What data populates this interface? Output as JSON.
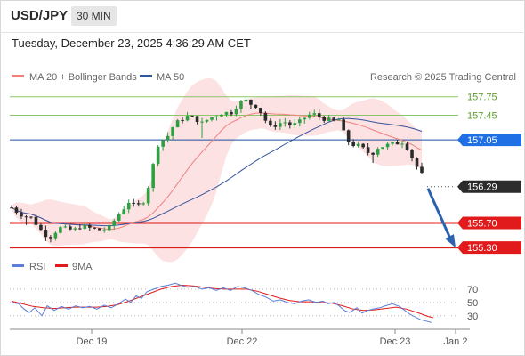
{
  "header": {
    "symbol": "USD/JPY",
    "timeframe": "30 MIN",
    "timestamp": "Tuesday, December 23, 2025 4:36:29 AM CET"
  },
  "legend": {
    "ma20": "MA 20 + Bollinger Bands",
    "ma50": "MA 50",
    "credit": "Research © 2025 Trading Central",
    "rsi": "RSI",
    "rsi_ma": "9MA"
  },
  "colors": {
    "ma20": "#f08080",
    "ma50": "#34559c",
    "bands": "#fbd8d8",
    "resistance": "#8cc56b",
    "pivot": "#1f4e9c",
    "support": "#e11b1b",
    "current": "#2c2c2c",
    "arrow": "#2b62b0",
    "rsi": "#5b7fd6",
    "rsi_ma": "#e11b1b"
  },
  "chart_data": {
    "type": "candlestick",
    "x_ticks": [
      "Dec 19",
      "Dec 22",
      "Dec 23",
      "Jan 2"
    ],
    "y_range": [
      155.1,
      158.05
    ],
    "levels": [
      {
        "label": "157.75",
        "value": 157.75,
        "kind": "resistance"
      },
      {
        "label": "157.45",
        "value": 157.45,
        "kind": "resistance"
      },
      {
        "label": "157.05",
        "value": 157.05,
        "kind": "pivot"
      },
      {
        "label": "156.29",
        "value": 156.29,
        "kind": "current"
      },
      {
        "label": "155.70",
        "value": 155.7,
        "kind": "support"
      },
      {
        "label": "155.30",
        "value": 155.3,
        "kind": "support"
      }
    ],
    "projection": {
      "from": 156.29,
      "to": 155.3
    },
    "rsi": {
      "ticks": [
        "70",
        "50",
        "30"
      ],
      "tick_values": [
        70,
        50,
        30
      ],
      "range": [
        15,
        90
      ]
    }
  }
}
